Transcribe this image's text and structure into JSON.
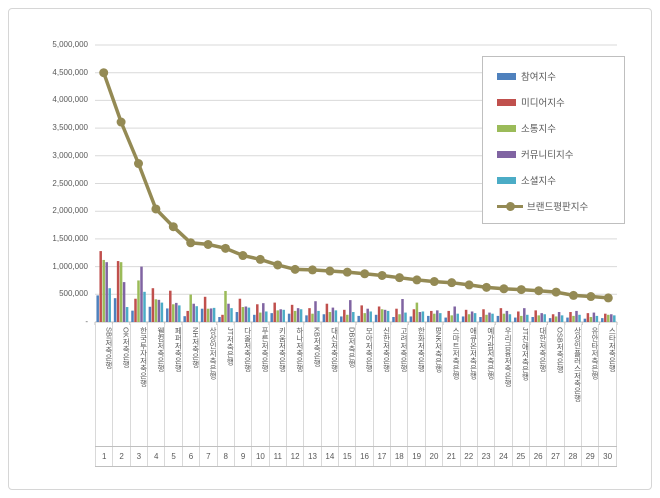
{
  "chart_data": {
    "type": "bar+line",
    "title": "",
    "legend_position": "right-top",
    "grid": true,
    "y_axis": {
      "min": 0,
      "max": 5000000,
      "step": 500000,
      "tick_labels_top_to_bottom": [
        "5,000,000",
        "4,500,000",
        "4,000,000",
        "3,500,000",
        "3,000,000",
        "2,500,000",
        "2,000,000",
        "1,500,000",
        "1,000,000",
        "500,000",
        "-"
      ]
    },
    "categories": [
      "SBI저축은행",
      "OK저축은행",
      "한국투자저축은행",
      "웰컴저축은행",
      "페퍼저축은행",
      "NH저축은행",
      "상상인저축은행",
      "JT저축은행",
      "다올저축은행",
      "푸른저축은행",
      "키움저축은행",
      "하나저축은행",
      "KB저축은행",
      "대신저축은행",
      "DB저축은행",
      "모아저축은행",
      "신한저축은행",
      "고려저축은행",
      "한화저축은행",
      "BNK저축은행",
      "스마트저축은행",
      "애큐온저축은행",
      "예가람저축은행",
      "우리금융저축은행",
      "JT친애저축은행",
      "대한저축은행",
      "OSB저축은행",
      "상상인플러스저축은행",
      "유안타저축은행",
      "스타저축은행"
    ],
    "ranks": [
      "1",
      "2",
      "3",
      "4",
      "5",
      "6",
      "7",
      "8",
      "9",
      "10",
      "11",
      "12",
      "13",
      "14",
      "15",
      "16",
      "17",
      "18",
      "19",
      "20",
      "21",
      "22",
      "23",
      "24",
      "25",
      "26",
      "27",
      "28",
      "29",
      "30"
    ],
    "series": [
      {
        "name": "참여지수",
        "type": "bar",
        "color": "#4F81BD",
        "values": [
          480000,
          430000,
          205000,
          275000,
          245000,
          105000,
          240000,
          90000,
          180000,
          130000,
          160000,
          150000,
          120000,
          140000,
          100000,
          110000,
          130000,
          90000,
          100000,
          110000,
          80000,
          100000,
          90000,
          110000,
          80000,
          90000,
          70000,
          80000,
          60000,
          70000
        ]
      },
      {
        "name": "미디어지수",
        "type": "bar",
        "color": "#C0504D",
        "values": [
          1280000,
          1100000,
          420000,
          610000,
          565000,
          200000,
          455000,
          130000,
          420000,
          320000,
          350000,
          310000,
          250000,
          330000,
          220000,
          300000,
          280000,
          240000,
          230000,
          200000,
          200000,
          220000,
          230000,
          250000,
          190000,
          210000,
          140000,
          180000,
          160000,
          150000
        ]
      },
      {
        "name": "소통지수",
        "type": "bar",
        "color": "#9BBB59",
        "values": [
          1120000,
          1080000,
          750000,
          410000,
          320000,
          495000,
          240000,
          560000,
          270000,
          170000,
          210000,
          200000,
          150000,
          180000,
          130000,
          160000,
          230000,
          140000,
          350000,
          150000,
          120000,
          140000,
          130000,
          150000,
          110000,
          120000,
          100000,
          110000,
          90000,
          130000
        ]
      },
      {
        "name": "커뮤니티지수",
        "type": "bar",
        "color": "#8064A2",
        "values": [
          1080000,
          720000,
          1000000,
          400000,
          345000,
          330000,
          245000,
          330000,
          280000,
          340000,
          230000,
          250000,
          375000,
          260000,
          395000,
          240000,
          220000,
          415000,
          180000,
          210000,
          280000,
          190000,
          170000,
          200000,
          250000,
          160000,
          180000,
          200000,
          170000,
          140000
        ]
      },
      {
        "name": "소셜지수",
        "type": "bar",
        "color": "#4BACC6",
        "values": [
          610000,
          270000,
          545000,
          350000,
          300000,
          285000,
          255000,
          250000,
          260000,
          190000,
          220000,
          230000,
          200000,
          210000,
          180000,
          190000,
          200000,
          170000,
          190000,
          160000,
          150000,
          160000,
          150000,
          140000,
          130000,
          140000,
          120000,
          130000,
          110000,
          120000
        ]
      },
      {
        "name": "브랜드평판지수",
        "type": "line",
        "color": "#948A54",
        "values": [
          4500000,
          3610000,
          2860000,
          2040000,
          1720000,
          1430000,
          1400000,
          1330000,
          1200000,
          1130000,
          1030000,
          950000,
          940000,
          920000,
          900000,
          870000,
          840000,
          800000,
          760000,
          730000,
          710000,
          670000,
          625000,
          600000,
          585000,
          565000,
          540000,
          480000,
          460000,
          435000
        ]
      }
    ],
    "colors": {
      "gridline": "#d9d9d9",
      "axis": "#bfbfbf",
      "tick_text": "#595959"
    }
  }
}
